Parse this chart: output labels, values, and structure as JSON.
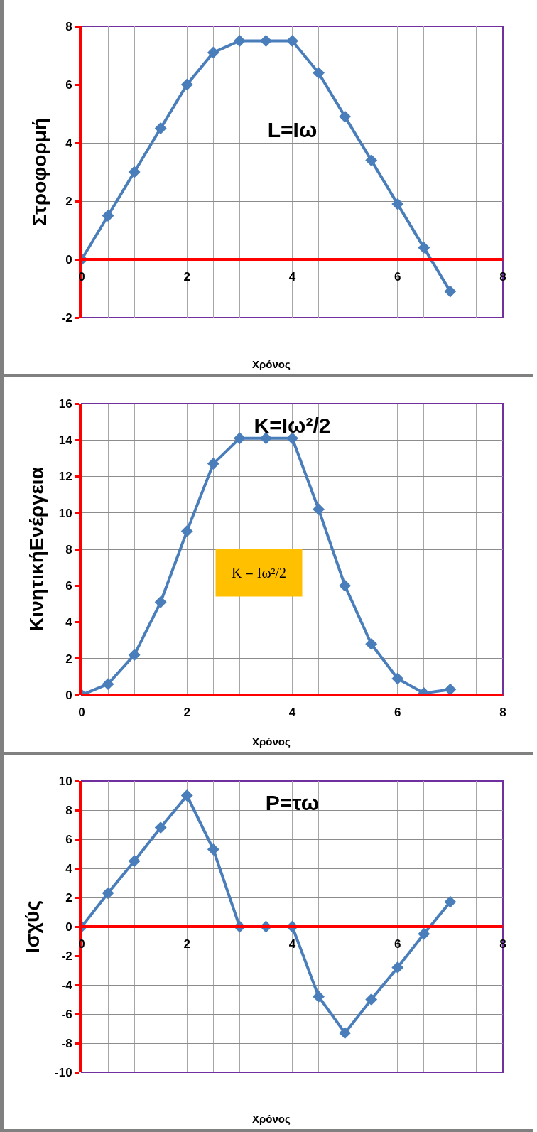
{
  "chart_data": [
    {
      "type": "line",
      "title": "L=Iω",
      "xlabel": "Χρόνος",
      "ylabel": "Στροφορμή",
      "x": [
        0,
        0.5,
        1,
        1.5,
        2,
        2.5,
        3,
        3.5,
        4,
        4.5,
        5,
        5.5,
        6,
        6.5,
        7
      ],
      "series": [
        {
          "color": "#4a7ebb",
          "values": [
            0,
            1.5,
            3,
            4.5,
            6,
            7.1,
            7.5,
            7.5,
            7.5,
            6.4,
            4.9,
            3.4,
            1.9,
            0.4,
            -1.1
          ]
        }
      ],
      "xlim": [
        0,
        8
      ],
      "xticks": [
        0,
        {
          "value": 0.5,
          "label": null
        },
        {
          "value": 1,
          "label": null
        },
        {
          "value": 1.5,
          "label": null
        },
        2,
        {
          "value": 2.5,
          "label": null
        },
        {
          "value": 3,
          "label": null
        },
        {
          "value": 3.5,
          "label": null
        },
        4,
        {
          "value": 4.5,
          "label": null
        },
        {
          "value": 5,
          "label": null
        },
        {
          "value": 5.5,
          "label": null
        },
        6,
        {
          "value": 6.5,
          "label": null
        },
        {
          "value": 7,
          "label": null
        },
        {
          "value": 7.5,
          "label": null
        },
        8
      ],
      "ylim": [
        -2,
        8
      ],
      "yticks": [
        -2,
        0,
        2,
        4,
        6,
        8
      ],
      "grid": true,
      "marker": "diamond",
      "line_style": "solid"
    },
    {
      "type": "line",
      "title": "K=Iω²/2",
      "xlabel": "Χρόνος",
      "ylabel": "ΚινητικήΕνέργεια",
      "annotations": [
        "K = Iω²/2"
      ],
      "x": [
        0,
        0.5,
        1,
        1.5,
        2,
        2.5,
        3,
        3.5,
        4,
        4.5,
        5,
        5.5,
        6,
        6.5,
        7
      ],
      "series": [
        {
          "color": "#4a7ebb",
          "values": [
            0,
            0.6,
            2.2,
            5.1,
            9,
            12.7,
            14.1,
            14.1,
            14.1,
            10.2,
            6,
            2.8,
            0.9,
            0.1,
            0.3
          ]
        }
      ],
      "xlim": [
        0,
        8
      ],
      "xticks": [
        0,
        {
          "value": 0.5,
          "label": null
        },
        {
          "value": 1,
          "label": null
        },
        {
          "value": 1.5,
          "label": null
        },
        2,
        {
          "value": 2.5,
          "label": null
        },
        {
          "value": 3,
          "label": null
        },
        {
          "value": 3.5,
          "label": null
        },
        4,
        {
          "value": 4.5,
          "label": null
        },
        {
          "value": 5,
          "label": null
        },
        {
          "value": 5.5,
          "label": null
        },
        6,
        {
          "value": 6.5,
          "label": null
        },
        {
          "value": 7,
          "label": null
        },
        {
          "value": 7.5,
          "label": null
        },
        8
      ],
      "ylim": [
        0,
        16
      ],
      "yticks": [
        0,
        2,
        4,
        6,
        8,
        10,
        12,
        14,
        16
      ],
      "grid": true,
      "marker": "diamond",
      "line_style": "solid"
    },
    {
      "type": "line",
      "title": "P=τω",
      "xlabel": "Χρόνος",
      "ylabel": "Ισχύς",
      "x": [
        0,
        0.5,
        1,
        1.5,
        2,
        2.5,
        3,
        3.5,
        4,
        4.5,
        5,
        5.5,
        6,
        6.5,
        7
      ],
      "series": [
        {
          "color": "#4a7ebb",
          "values": [
            0,
            2.3,
            4.5,
            6.8,
            9,
            5.3,
            0,
            0,
            0,
            -4.8,
            -7.3,
            -5,
            -2.8,
            -0.5,
            1.7
          ]
        }
      ],
      "xlim": [
        0,
        8
      ],
      "xticks": [
        0,
        {
          "value": 0.5,
          "label": null
        },
        {
          "value": 1,
          "label": null
        },
        {
          "value": 1.5,
          "label": null
        },
        2,
        {
          "value": 2.5,
          "label": null
        },
        {
          "value": 3,
          "label": null
        },
        {
          "value": 3.5,
          "label": null
        },
        4,
        {
          "value": 4.5,
          "label": null
        },
        {
          "value": 5,
          "label": null
        },
        {
          "value": 5.5,
          "label": null
        },
        6,
        {
          "value": 6.5,
          "label": null
        },
        {
          "value": 7,
          "label": null
        },
        {
          "value": 7.5,
          "label": null
        },
        8
      ],
      "ylim": [
        -10,
        10
      ],
      "yticks": [
        -10,
        -8,
        -6,
        -4,
        -2,
        0,
        2,
        4,
        6,
        8,
        10
      ],
      "grid": true,
      "marker": "diamond",
      "line_style": "solid"
    }
  ]
}
